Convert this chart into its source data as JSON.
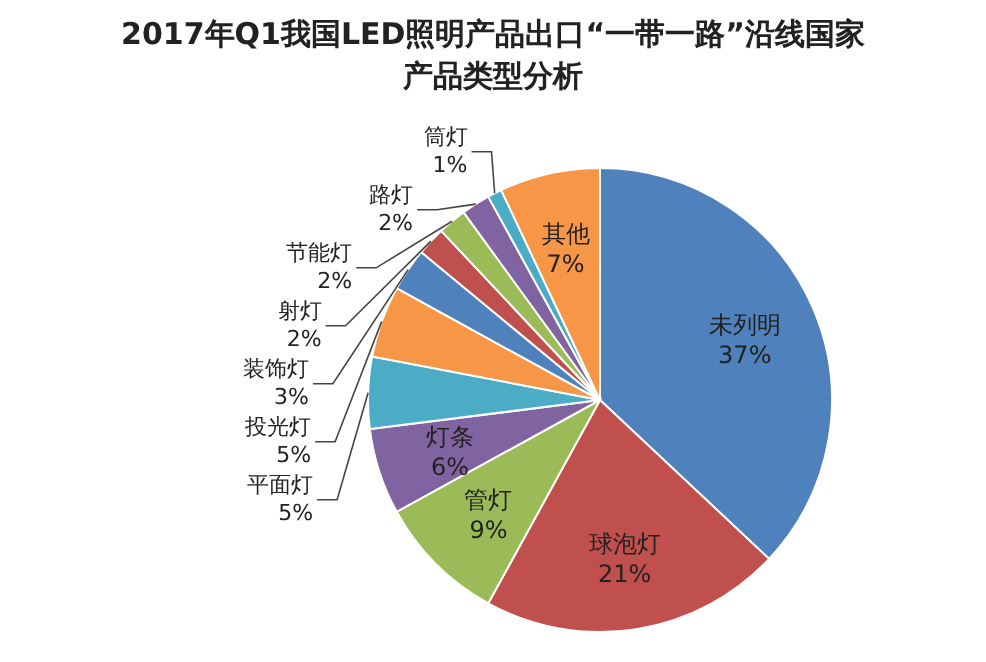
{
  "chart_data": {
    "type": "pie",
    "title": "2017年Q1我国LED照明产品出口“一带一路”沿线国家产品类型分析",
    "categories": [
      "未列明",
      "球泡灯",
      "管灯",
      "灯条",
      "平面灯",
      "投光灯",
      "装饰灯",
      "射灯",
      "节能灯",
      "路灯",
      "筒灯",
      "其他"
    ],
    "values": [
      37,
      21,
      9,
      6,
      5,
      5,
      3,
      2,
      2,
      2,
      1,
      7
    ],
    "value_labels": [
      "37%",
      "21%",
      "9%",
      "6%",
      "5%",
      "5%",
      "3%",
      "2%",
      "2%",
      "2%",
      "1%",
      "7%"
    ],
    "colors": [
      "#4f81bd",
      "#c0504d",
      "#9bbb59",
      "#8064a2",
      "#4bacc6",
      "#f79646",
      "#4f81bd",
      "#c0504d",
      "#9bbb59",
      "#8064a2",
      "#4bacc6",
      "#f79646"
    ]
  }
}
